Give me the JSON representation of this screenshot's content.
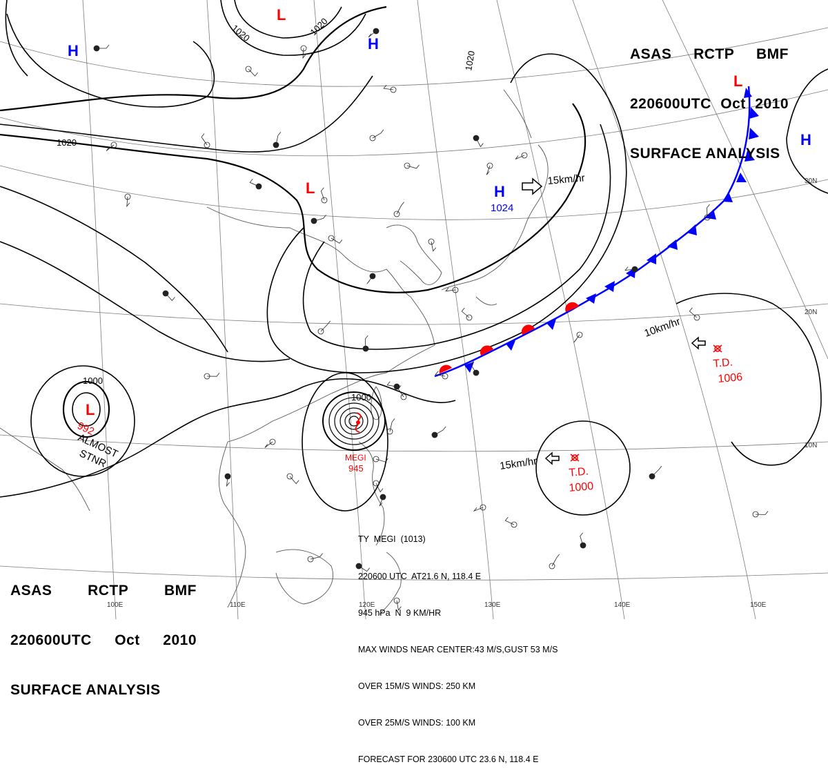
{
  "header": {
    "agency": "ASAS",
    "station": "RCTP",
    "office": "BMF",
    "time": "220600UTC",
    "month": "Oct",
    "year": "2010",
    "title": "SURFACE ANALYSIS"
  },
  "pressure_centers": [
    {
      "type": "H",
      "value": "",
      "color": "#0000ff"
    },
    {
      "type": "H",
      "value": "",
      "color": "#0000ff"
    },
    {
      "type": "H",
      "value": "1024",
      "color": "#0000ff"
    },
    {
      "type": "H",
      "value": "",
      "color": "#0000ff"
    },
    {
      "type": "L",
      "value": "",
      "color": "#ff0000"
    },
    {
      "type": "L",
      "value": "",
      "color": "#ff0000"
    },
    {
      "type": "L",
      "value": "",
      "color": "#ff0000"
    },
    {
      "type": "L",
      "value": "992",
      "color": "#ff0000"
    }
  ],
  "isobar_labels": [
    "1020",
    "1020",
    "1020",
    "1020",
    "1000",
    "1000"
  ],
  "systems": {
    "stnr_line1": "ALMOST",
    "stnr_line2": "STNR",
    "megi_name": "MEGI",
    "megi_pressure": "945",
    "td_east_label": "T.D.",
    "td_east_pressure": "1006",
    "td_south_label": "T.D.",
    "td_south_pressure": "1000"
  },
  "motion_vectors": [
    "15km/hr",
    "10km/hr",
    "15km/hr"
  ],
  "latitude_labels": [
    "30N",
    "20N",
    "10N"
  ],
  "longitude_labels": [
    "100E",
    "110E",
    "120E",
    "130E",
    "140E",
    "150E"
  ],
  "typhoon_info": {
    "line1": "TY  MEGI  (1013)",
    "line2": "220600 UTC  AT21.6 N, 118.4 E",
    "line3": "945 hPa  N  9 KM/HR",
    "line4": "MAX WINDS NEAR CENTER:43 M/S,GUST 53 M/S",
    "line5": "OVER 15M/S WINDS: 250 KM",
    "line6": "OVER 25M/S WINDS: 100 KM",
    "line7": "FORECAST FOR 230600 UTC 23.6 N, 118.4 E"
  },
  "colors": {
    "high": "#0000ff",
    "low": "#ff0000",
    "cold_front": "#0000ff",
    "warm_front": "#ff0000"
  }
}
